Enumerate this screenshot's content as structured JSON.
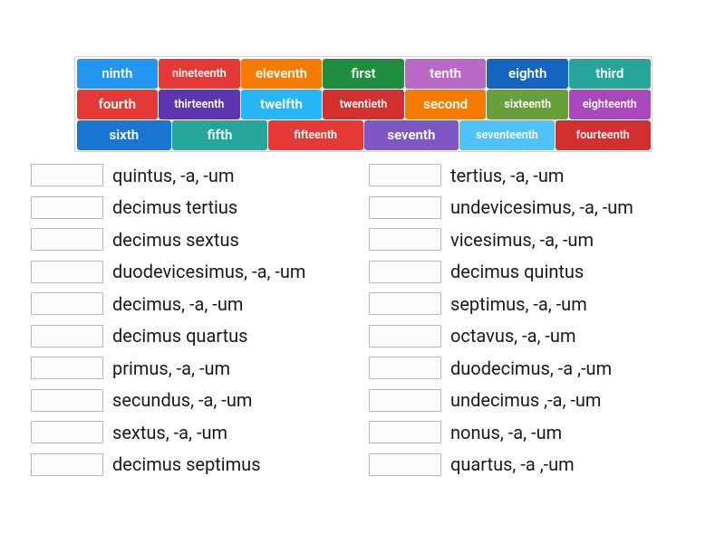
{
  "tiles": {
    "row1": [
      {
        "label": "ninth",
        "color": "#2196f3"
      },
      {
        "label": "nineteenth",
        "color": "#e53935",
        "small": true
      },
      {
        "label": "eleventh",
        "color": "#f57c00"
      },
      {
        "label": "first",
        "color": "#1e8e3e"
      },
      {
        "label": "tenth",
        "color": "#ba68c8"
      },
      {
        "label": "eighth",
        "color": "#1565c0"
      },
      {
        "label": "third",
        "color": "#26a69a"
      }
    ],
    "row2": [
      {
        "label": "fourth",
        "color": "#e53935"
      },
      {
        "label": "thirteenth",
        "color": "#5e35b1",
        "small": true
      },
      {
        "label": "twelfth",
        "color": "#29b6f6"
      },
      {
        "label": "twentieth",
        "color": "#d32f2f",
        "small": true
      },
      {
        "label": "second",
        "color": "#f57c00"
      },
      {
        "label": "sixteenth",
        "color": "#689f38",
        "small": true
      },
      {
        "label": "eighteenth",
        "color": "#ab47bc",
        "small": true
      }
    ],
    "row3": [
      {
        "label": "sixth",
        "color": "#1976d2"
      },
      {
        "label": "fifth",
        "color": "#26a69a"
      },
      {
        "label": "fifteenth",
        "color": "#e53935",
        "small": true
      },
      {
        "label": "seventh",
        "color": "#7e57c2"
      },
      {
        "label": "seventeenth",
        "color": "#4fc3f7",
        "small": true
      },
      {
        "label": "fourteenth",
        "color": "#d32f2f",
        "small": true
      }
    ]
  },
  "activity": {
    "left": [
      "quintus, -a, -um",
      "decimus tertius",
      "decimus sextus",
      "duodevicesimus, -a, -um",
      "decimus, -a, -um",
      "decimus quartus",
      "primus, -a, -um",
      "secundus, -a, -um",
      "sextus, -a, -um",
      "decimus septimus"
    ],
    "right": [
      "tertius, -a, -um",
      "undevicesimus, -a, -um",
      "vicesimus, -a, -um",
      "decimus quintus",
      "septimus, -a, -um",
      "octavus, -a, -um",
      "duodecimus, -a ,-um",
      "undecimus ,-a, -um",
      "nonus, -a, -um",
      "quartus, -a ,-um"
    ]
  }
}
